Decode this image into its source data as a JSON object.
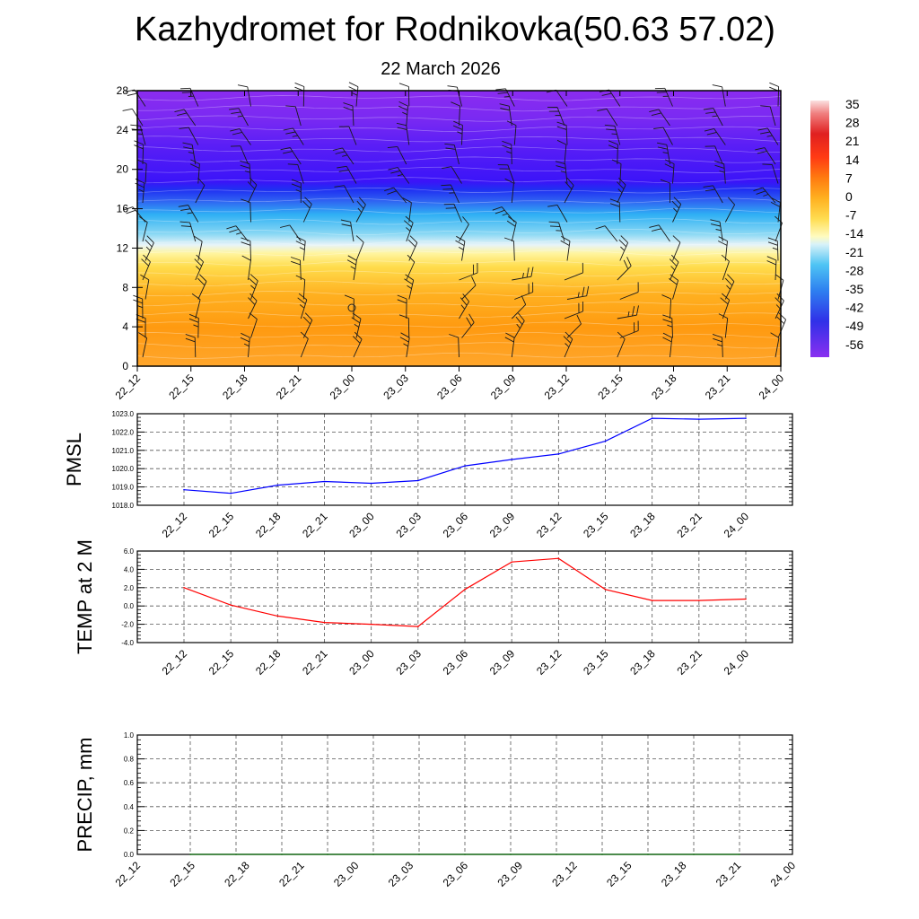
{
  "title": "Kazhydromet for Rodnikovka(50.63 57.02)",
  "subtitle": "22 March 2026",
  "colors": {
    "pmsl_line": "#0000ff",
    "temp_line": "#ff0000",
    "precip_line": "#006400",
    "grid": "#000000"
  },
  "time_labels": [
    "22_12",
    "22_15",
    "22_18",
    "22_21",
    "23_00",
    "23_03",
    "23_06",
    "23_09",
    "23_12",
    "23_15",
    "23_18",
    "23_21",
    "24_00"
  ],
  "chart_data": [
    {
      "type": "heatmap",
      "name": "cross-section",
      "description": "Time-height temperature cross-section with wind barbs",
      "x": [
        "22_12",
        "22_15",
        "22_18",
        "22_21",
        "23_00",
        "23_03",
        "23_06",
        "23_09",
        "23_12",
        "23_15",
        "23_18",
        "23_21",
        "24_00"
      ],
      "y_ticks": [
        "0",
        "4",
        "8",
        "12",
        "16",
        "20",
        "24",
        "28"
      ],
      "ylim": [
        0,
        28
      ],
      "colorbar_labels": [
        "35",
        "28",
        "21",
        "14",
        "7",
        "0",
        "-7",
        "-14",
        "-21",
        "-28",
        "-35",
        "-42",
        "-49",
        "-56"
      ],
      "colorbar_range": [
        -60,
        38
      ]
    },
    {
      "type": "line",
      "name": "pmsl",
      "ylabel": "PMSL",
      "x": [
        "22_12",
        "22_15",
        "22_18",
        "22_21",
        "23_00",
        "23_03",
        "23_06",
        "23_09",
        "23_12",
        "23_15",
        "23_18",
        "23_21",
        "24_00"
      ],
      "values": [
        1018.85,
        1018.65,
        1019.1,
        1019.3,
        1019.2,
        1019.35,
        1020.15,
        1020.5,
        1020.8,
        1021.5,
        1022.75,
        1022.7,
        1022.75
      ],
      "y_ticks": [
        "1018.0",
        "1019.0",
        "1020.0",
        "1021.0",
        "1022.0",
        "1023.0"
      ],
      "ylim": [
        1018.0,
        1023.0
      ]
    },
    {
      "type": "line",
      "name": "temp",
      "ylabel": "TEMP at 2 M",
      "x": [
        "22_12",
        "22_15",
        "22_18",
        "22_21",
        "23_00",
        "23_03",
        "23_06",
        "23_09",
        "23_12",
        "23_15",
        "23_18",
        "23_21",
        "24_00"
      ],
      "values": [
        2.0,
        0.1,
        -1.1,
        -1.8,
        -2.0,
        -2.25,
        1.8,
        4.8,
        5.2,
        1.8,
        0.6,
        0.6,
        0.75
      ],
      "y_ticks": [
        "-4.0",
        "-2.0",
        "0.0",
        "2.0",
        "4.0",
        "6.0"
      ],
      "ylim": [
        -4.0,
        6.0
      ]
    },
    {
      "type": "line",
      "name": "precip",
      "ylabel": "PRECIP, mm",
      "x": [
        "22_12",
        "22_15",
        "22_18",
        "22_21",
        "23_00",
        "23_03",
        "23_06",
        "23_09",
        "23_12",
        "23_15",
        "23_18",
        "23_21",
        "24_00"
      ],
      "values": [
        0,
        0,
        0,
        0,
        0,
        0,
        0,
        0,
        0,
        0,
        0,
        0,
        0
      ],
      "y_ticks": [
        "0.0",
        "0.2",
        "0.4",
        "0.6",
        "0.8",
        "1.0"
      ],
      "ylim": [
        0.0,
        1.0
      ]
    }
  ]
}
